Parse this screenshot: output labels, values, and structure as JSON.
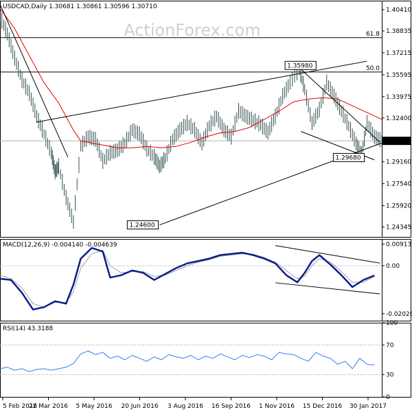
{
  "watermark": "ActionForex.com",
  "colors": {
    "price_bar": "#2f4f4f",
    "ma": "#e60000",
    "macd": "#0b1f8a",
    "macd_signal": "#a0a0a0",
    "rsi": "#2f80ed",
    "trend": "#000000",
    "grid_dash": "#b0b0b0",
    "border": "#000000"
  },
  "chart_data": [
    {
      "type": "line",
      "name": "price-panel",
      "title": "USDCAD,Daily 1.30681 1.30861 1.30596 1.30710",
      "ylim": [
        1.2361,
        1.4107
      ],
      "yticks": [
        1.4041,
        1.38835,
        1.37215,
        1.35595,
        1.33975,
        1.324,
        1.3071,
        1.2916,
        1.2754,
        1.2592,
        1.24345
      ],
      "ytick_labels": [
        "1.40410",
        "1.38835",
        "1.37215",
        "1.35595",
        "1.33975",
        "1.32400",
        "1.30710",
        "1.29160",
        "1.27540",
        "1.25920",
        "1.24345"
      ],
      "current_price": {
        "value": 1.3071,
        "label": "1.30710"
      },
      "fib_levels": [
        {
          "label": "61.8",
          "value": 1.3834
        },
        {
          "label": "50.0",
          "value": 1.358
        }
      ],
      "annotations": [
        {
          "label": "1.24600",
          "x": 87,
          "y": 1.246
        },
        {
          "label": "1.35980",
          "x": 163,
          "y": 1.3598
        },
        {
          "label": "1.29680",
          "x": 197,
          "y": 1.2968
        }
      ],
      "trend_lines": [
        {
          "from": [
            87,
            1.245
          ],
          "to": [
            208,
            1.3055
          ]
        },
        {
          "from": [
            20,
            1.321
          ],
          "to": [
            200,
            1.366
          ]
        },
        {
          "from": [
            164,
            1.36
          ],
          "to": [
            207,
            1.306
          ]
        },
        {
          "from": [
            164,
            1.314
          ],
          "to": [
            204,
            1.293
          ]
        },
        {
          "from": [
            0,
            1.408
          ],
          "to": [
            37,
            1.295
          ]
        }
      ],
      "series": [
        {
          "name": "price_close",
          "x": [
            0,
            4,
            8,
            12,
            16,
            20,
            24,
            28,
            30,
            32,
            36,
            40,
            44,
            48,
            52,
            56,
            60,
            64,
            68,
            72,
            76,
            80,
            84,
            87,
            90,
            94,
            98,
            102,
            106,
            110,
            114,
            118,
            122,
            126,
            130,
            134,
            138,
            142,
            146,
            150,
            154,
            158,
            163,
            166,
            170,
            174,
            178,
            182,
            186,
            190,
            194,
            197,
            200,
            204,
            208
          ],
          "values": [
            1.399,
            1.386,
            1.368,
            1.352,
            1.342,
            1.325,
            1.312,
            1.298,
            1.284,
            1.288,
            1.265,
            1.247,
            1.303,
            1.31,
            1.308,
            1.292,
            1.298,
            1.3,
            1.305,
            1.315,
            1.312,
            1.301,
            1.295,
            1.288,
            1.294,
            1.308,
            1.315,
            1.32,
            1.315,
            1.305,
            1.318,
            1.325,
            1.315,
            1.31,
            1.329,
            1.325,
            1.322,
            1.319,
            1.313,
            1.325,
            1.34,
            1.35,
            1.3598,
            1.345,
            1.32,
            1.33,
            1.35,
            1.34,
            1.329,
            1.318,
            1.305,
            1.2968,
            1.32,
            1.31,
            1.3071
          ]
        },
        {
          "name": "moving_average",
          "x": [
            0,
            8,
            16,
            24,
            32,
            40,
            44,
            48,
            56,
            64,
            72,
            80,
            88,
            96,
            104,
            112,
            120,
            128,
            136,
            144,
            152,
            160,
            168,
            176,
            184,
            192,
            200,
            208
          ],
          "values": [
            1.405,
            1.39,
            1.37,
            1.35,
            1.335,
            1.315,
            1.307,
            1.306,
            1.304,
            1.302,
            1.302,
            1.303,
            1.302,
            1.303,
            1.306,
            1.31,
            1.313,
            1.314,
            1.317,
            1.323,
            1.329,
            1.336,
            1.338,
            1.339,
            1.338,
            1.333,
            1.328,
            1.323
          ]
        }
      ]
    },
    {
      "type": "line",
      "name": "macd-panel",
      "title": "MACD(12,26,9) -0.004140 -0.004639",
      "ylim": [
        -0.0232,
        0.0113
      ],
      "yticks": [
        0.009132,
        0.0,
        -0.020269
      ],
      "ytick_labels": [
        "0.009132",
        "0.00",
        "-0.020269"
      ],
      "trend_lines": [
        {
          "from": [
            150,
            0.0085
          ],
          "to": [
            207,
            0.0011
          ]
        },
        {
          "from": [
            150,
            -0.0072
          ],
          "to": [
            207,
            -0.0119
          ]
        }
      ],
      "series": [
        {
          "name": "MACD",
          "x": [
            0,
            6,
            12,
            18,
            24,
            30,
            36,
            40,
            44,
            50,
            56,
            60,
            66,
            72,
            78,
            84,
            90,
            96,
            102,
            108,
            114,
            120,
            126,
            132,
            138,
            144,
            150,
            156,
            162,
            166,
            170,
            174,
            180,
            186,
            192,
            198,
            204
          ],
          "values": [
            -0.0055,
            -0.006,
            -0.0115,
            -0.0185,
            -0.0175,
            -0.015,
            -0.016,
            -0.008,
            0.003,
            0.0075,
            0.006,
            -0.005,
            -0.004,
            -0.002,
            -0.003,
            -0.006,
            -0.0035,
            -0.001,
            0.001,
            0.002,
            0.003,
            0.0045,
            0.005,
            0.0055,
            0.0045,
            0.003,
            0.001,
            -0.004,
            -0.007,
            -0.003,
            0.002,
            0.0045,
            0.0005,
            -0.004,
            -0.009,
            -0.006,
            -0.0041
          ]
        },
        {
          "name": "Signal",
          "x": [
            0,
            6,
            12,
            18,
            24,
            30,
            36,
            40,
            44,
            50,
            56,
            60,
            66,
            72,
            78,
            84,
            90,
            96,
            102,
            108,
            114,
            120,
            126,
            132,
            138,
            144,
            150,
            156,
            162,
            166,
            170,
            174,
            180,
            186,
            192,
            198,
            204
          ],
          "values": [
            -0.004,
            -0.0055,
            -0.0095,
            -0.016,
            -0.0175,
            -0.0155,
            -0.0155,
            -0.011,
            -0.001,
            0.005,
            0.0065,
            0.0,
            -0.003,
            -0.0025,
            -0.0025,
            -0.0045,
            -0.004,
            -0.002,
            0.0,
            0.0015,
            0.0025,
            0.004,
            0.0045,
            0.005,
            0.0048,
            0.0035,
            0.0015,
            -0.002,
            -0.0055,
            -0.0045,
            0.0,
            0.003,
            0.0015,
            -0.0025,
            -0.007,
            -0.007,
            -0.0046
          ]
        }
      ]
    },
    {
      "type": "line",
      "name": "rsi-panel",
      "title": "RSI(14) 43.3188",
      "ylim": [
        0,
        100
      ],
      "yticks": [
        100,
        70,
        30,
        0
      ],
      "ytick_labels": [
        "100",
        "70",
        "30",
        "0"
      ],
      "levels": [
        70,
        30
      ],
      "series": [
        {
          "name": "RSI(14)",
          "x": [
            0,
            4,
            8,
            12,
            16,
            20,
            24,
            28,
            32,
            36,
            40,
            44,
            48,
            52,
            56,
            60,
            64,
            68,
            72,
            76,
            80,
            84,
            88,
            92,
            96,
            100,
            104,
            108,
            112,
            116,
            120,
            124,
            128,
            132,
            136,
            140,
            144,
            148,
            152,
            156,
            160,
            164,
            168,
            172,
            176,
            180,
            184,
            188,
            192,
            196,
            200,
            204
          ],
          "values": [
            38,
            40,
            36,
            38,
            34,
            37,
            38,
            36,
            38,
            40,
            45,
            58,
            62,
            57,
            60,
            52,
            55,
            50,
            56,
            52,
            48,
            54,
            50,
            57,
            54,
            52,
            56,
            50,
            55,
            52,
            58,
            54,
            50,
            56,
            53,
            57,
            55,
            50,
            60,
            58,
            57,
            52,
            48,
            60,
            55,
            52,
            44,
            48,
            38,
            52,
            44,
            43
          ]
        }
      ]
    }
  ],
  "x_axis": {
    "tick_labels": [
      "5 Feb 2016",
      "22 Mar 2016",
      "5 May 2016",
      "20 Jun 2016",
      "3 Aug 2016",
      "16 Sep 2016",
      "1 Nov 2016",
      "15 Dec 2016",
      "30 Jan 2017"
    ]
  }
}
